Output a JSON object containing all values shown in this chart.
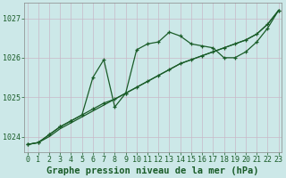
{
  "title": "Graphe pression niveau de la mer (hPa)",
  "x": [
    0,
    1,
    2,
    3,
    4,
    5,
    6,
    7,
    8,
    9,
    10,
    11,
    12,
    13,
    14,
    15,
    16,
    17,
    18,
    19,
    20,
    21,
    22,
    23
  ],
  "line1": [
    1023.8,
    1023.85,
    1024.0,
    1024.2,
    1024.35,
    1024.5,
    1024.65,
    1024.8,
    1024.95,
    1025.1,
    1025.25,
    1025.4,
    1025.55,
    1025.7,
    1025.85,
    1025.95,
    1026.05,
    1026.15,
    1026.25,
    1026.35,
    1026.45,
    1026.6,
    1026.85,
    1027.2
  ],
  "line2": [
    1023.8,
    1023.85,
    1024.05,
    1024.25,
    1024.4,
    1024.55,
    1025.5,
    1025.95,
    1024.75,
    1025.1,
    1026.2,
    1026.35,
    1026.4,
    1026.65,
    1026.55,
    1026.35,
    1026.3,
    1026.25,
    1026.0,
    1026.0,
    1026.15,
    1026.4,
    1026.75,
    1027.2
  ],
  "line3": [
    1023.8,
    1023.85,
    1024.05,
    1024.25,
    1024.4,
    1024.55,
    1024.7,
    1024.85,
    1024.95,
    1025.1,
    1025.25,
    1025.4,
    1025.55,
    1025.7,
    1025.85,
    1025.95,
    1026.05,
    1026.15,
    1026.25,
    1026.35,
    1026.45,
    1026.6,
    1026.85,
    1027.2
  ],
  "ylim": [
    1023.6,
    1027.4
  ],
  "yticks": [
    1024,
    1025,
    1026,
    1027
  ],
  "bg_color": "#cce8e8",
  "grid_color": "#b8c8c8",
  "line_color": "#1a5c28",
  "title_color": "#1a5c28",
  "tick_color": "#1a5c28",
  "title_fontsize": 7.5,
  "tick_fontsize": 6.0
}
